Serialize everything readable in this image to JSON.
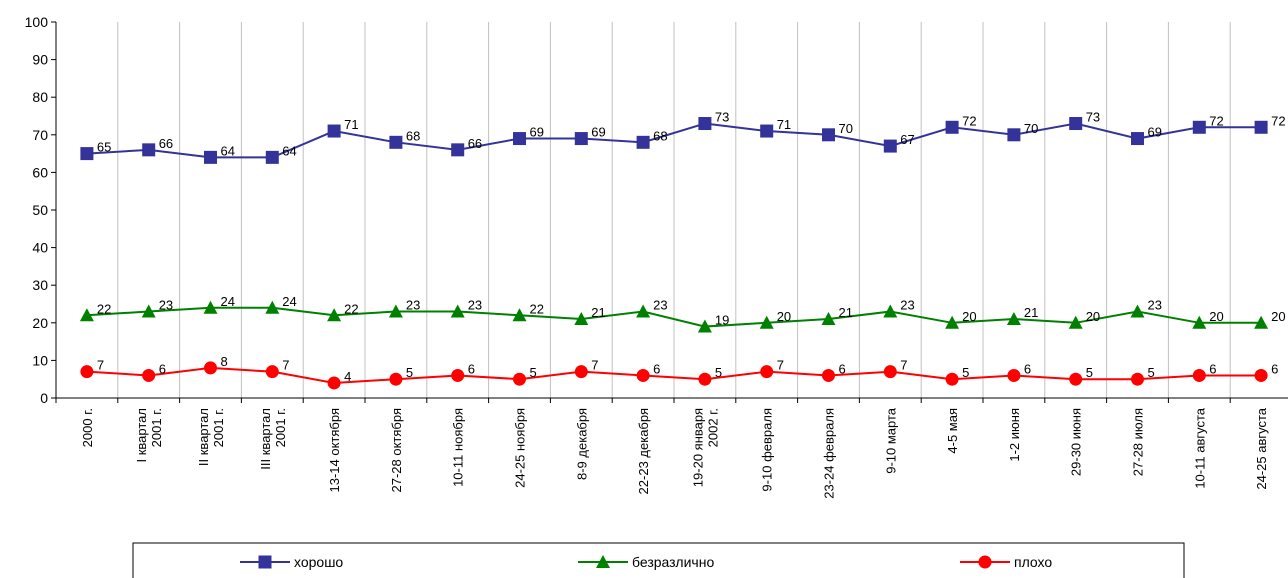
{
  "chart_data": {
    "type": "line",
    "categories": [
      "2000 г.",
      "I квартал\n2001 г.",
      "II квартал\n2001 г.",
      "III квартал\n2001 г.",
      "13-14 октября",
      "27-28 октября",
      "10-11 ноября",
      "24-25 ноября",
      "8-9 декабря",
      "22-23 декабря",
      "19-20 января\n2002 г.",
      "9-10 февраля",
      "23-24 февраля",
      "9-10 марта",
      "4-5 мая",
      "1-2 июня",
      "29-30 июня",
      "27-28 июля",
      "10-11 августа",
      "24-25 августа"
    ],
    "series": [
      {
        "name": "хорошо",
        "color": "#333399",
        "marker": "square",
        "values": [
          65,
          66,
          64,
          64,
          71,
          68,
          66,
          69,
          69,
          68,
          73,
          71,
          70,
          67,
          72,
          70,
          73,
          69,
          72,
          72
        ]
      },
      {
        "name": "безразлично",
        "color": "#008000",
        "marker": "triangle",
        "values": [
          22,
          23,
          24,
          24,
          22,
          23,
          23,
          22,
          21,
          23,
          19,
          20,
          21,
          23,
          20,
          21,
          20,
          23,
          20,
          20
        ]
      },
      {
        "name": "плохо",
        "color": "#ff0000",
        "marker": "circle",
        "values": [
          7,
          6,
          8,
          7,
          4,
          5,
          6,
          5,
          7,
          6,
          5,
          7,
          6,
          7,
          5,
          6,
          5,
          5,
          6,
          6
        ]
      }
    ],
    "ylim": [
      0,
      100
    ],
    "yticks": [
      0,
      10,
      20,
      30,
      40,
      50,
      60,
      70,
      80,
      90,
      100
    ],
    "grid": "x",
    "legend": "bottom"
  }
}
